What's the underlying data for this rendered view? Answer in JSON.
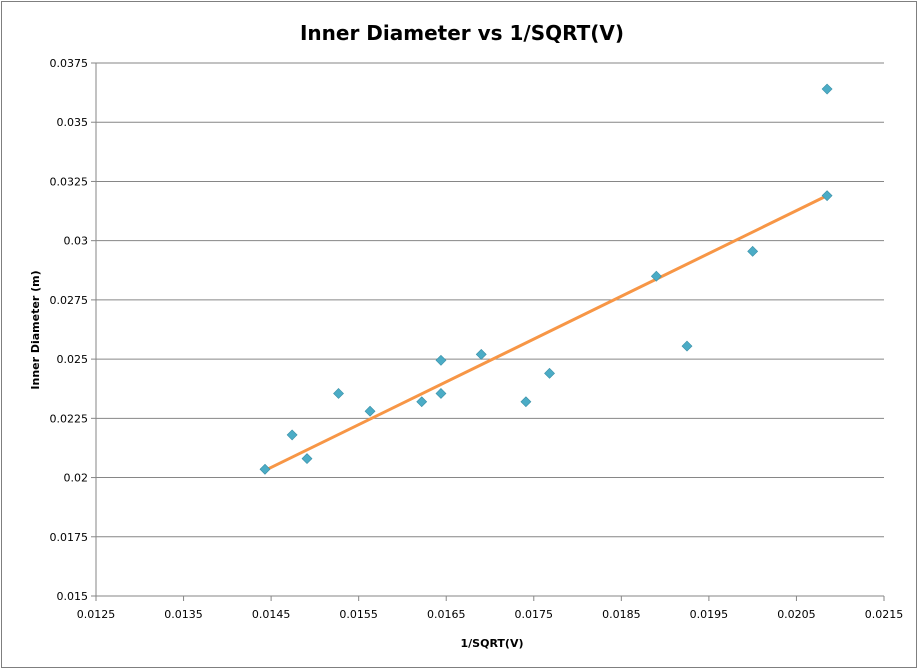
{
  "chart_data": {
    "type": "scatter",
    "title": "Inner Diameter vs 1/SQRT(V)",
    "xlabel": "1/SQRT(V)",
    "ylabel": "Inner Diameter (m)",
    "xlim": [
      0.0125,
      0.0215
    ],
    "ylim": [
      0.015,
      0.0375
    ],
    "xticks": [
      "0.0125",
      "0.0135",
      "0.0145",
      "0.0155",
      "0.0165",
      "0.0175",
      "0.0185",
      "0.0195",
      "0.0205",
      "0.0215"
    ],
    "yticks": [
      "0.015",
      "0.0175",
      "0.02",
      "0.0225",
      "0.025",
      "0.0275",
      "0.03",
      "0.0325",
      "0.035",
      "0.0375"
    ],
    "grid": "horizontal",
    "legend": "none",
    "series": [
      {
        "color": "#4bacc6",
        "marker": "diamond",
        "points": [
          [
            0.01443,
            0.02035
          ],
          [
            0.01474,
            0.0218
          ],
          [
            0.01491,
            0.0208
          ],
          [
            0.01527,
            0.02355
          ],
          [
            0.01563,
            0.0228
          ],
          [
            0.01622,
            0.0232
          ],
          [
            0.01644,
            0.02495
          ],
          [
            0.01644,
            0.02355
          ],
          [
            0.0169,
            0.0252
          ],
          [
            0.01741,
            0.0232
          ],
          [
            0.01768,
            0.0244
          ],
          [
            0.0189,
            0.0285
          ],
          [
            0.01925,
            0.02555
          ],
          [
            0.02,
            0.02955
          ],
          [
            0.02085,
            0.0364
          ],
          [
            0.02085,
            0.0319
          ]
        ]
      }
    ],
    "trendline": {
      "type": "linear",
      "color": "#f79646",
      "x": [
        0.01443,
        0.02085
      ],
      "y": [
        0.0203,
        0.0319
      ]
    }
  }
}
